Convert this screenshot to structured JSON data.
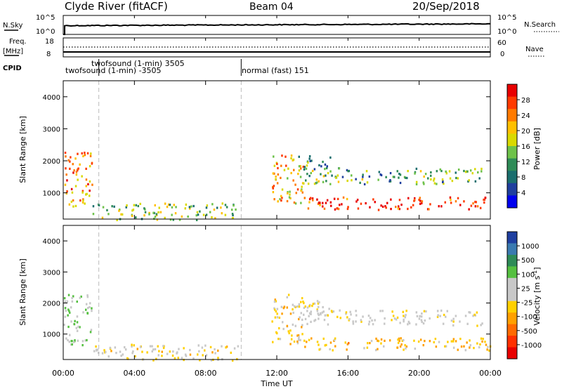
{
  "header": {
    "station": "Clyde River (fitACF)",
    "beam": "Beam 04",
    "date": "20/Sep/2018"
  },
  "top_panels": {
    "nsky_label": "N.Sky",
    "nsky_ticks": [
      "10^5",
      "10^0"
    ],
    "nsearch_label": "N.Search",
    "nsearch_ticks": [
      "10^5",
      "10^0"
    ],
    "freq_label": "Freq.",
    "freq_unit": "[MHz]",
    "freq_ticks": [
      "18",
      "8"
    ],
    "nave_label": "Nave",
    "nave_ticks": [
      "60",
      "0"
    ],
    "cpid_label": "CPID"
  },
  "cpid_segments": [
    {
      "label": "twofsound (1-min) -3505",
      "start_hour": 0,
      "end_hour": 2
    },
    {
      "label": "twofsound (1-min) 3505",
      "start_hour": 2,
      "end_hour": 10
    },
    {
      "label": "normal (fast) 151",
      "start_hour": 10,
      "end_hour": 24
    }
  ],
  "x_axis": {
    "label": "Time UT",
    "ticks": [
      "00:00",
      "04:00",
      "08:00",
      "12:00",
      "16:00",
      "20:00",
      "00:00"
    ],
    "range_hours": [
      0,
      24
    ]
  },
  "y_axis": {
    "label": "Slant Range [km]",
    "ticks": [
      "1000",
      "2000",
      "3000",
      "4000"
    ],
    "range_km": [
      180,
      4500
    ]
  },
  "power_colorbar": {
    "label": "Power [dB]",
    "ticks": [
      "28",
      "24",
      "20",
      "16",
      "12",
      "8",
      "4"
    ],
    "colors": [
      "#e80000",
      "#ff3a00",
      "#ff7a00",
      "#ffc000",
      "#d9d900",
      "#6ec24a",
      "#2e8b57",
      "#1a6e6e",
      "#1f3f9e",
      "#0000ee"
    ]
  },
  "velocity_colorbar": {
    "label": "Velocity",
    "unit": "[m s",
    "unit_exp": "-1",
    "unit_end": "]",
    "ticks": [
      "1000",
      "500",
      "100",
      "25",
      "-25",
      "-100",
      "-500",
      "-1000"
    ],
    "colors": [
      "#1f3fa0",
      "#3a7ab0",
      "#2e8b57",
      "#55c040",
      "#c8c8c8",
      "#c8c8c8",
      "#ffd000",
      "#ffa000",
      "#ff6a00",
      "#ff3000",
      "#e80000"
    ]
  },
  "chart_data": {
    "type": "heatmap",
    "panels": [
      "Power",
      "Velocity"
    ],
    "xlabel": "Time UT",
    "ylabel": "Slant Range [km]",
    "xlim_hours": [
      0,
      24
    ],
    "ylim_km": [
      180,
      4500
    ],
    "markers_hours": [
      2,
      10
    ],
    "scatter_regions": [
      {
        "t_start": 0.0,
        "t_end": 1.6,
        "r_min": 600,
        "r_max": 2300,
        "power_db": 22,
        "velocity": 300
      },
      {
        "t_start": 1.6,
        "t_end": 9.8,
        "r_min": 180,
        "r_max": 700,
        "power_db": 14,
        "velocity": -100
      },
      {
        "t_start": 11.7,
        "t_end": 13.5,
        "r_min": 700,
        "r_max": 2300,
        "power_db": 20,
        "velocity": -150
      },
      {
        "t_start": 13.5,
        "t_end": 24.0,
        "r_min": 500,
        "r_max": 900,
        "power_db": 26,
        "velocity": -300
      },
      {
        "t_start": 13.5,
        "t_end": 23.5,
        "r_min": 1300,
        "r_max": 1800,
        "power_db": 12,
        "velocity": 0
      },
      {
        "t_start": 13.2,
        "t_end": 15.0,
        "r_min": 1700,
        "r_max": 2200,
        "power_db": 10,
        "velocity": 0
      }
    ]
  }
}
